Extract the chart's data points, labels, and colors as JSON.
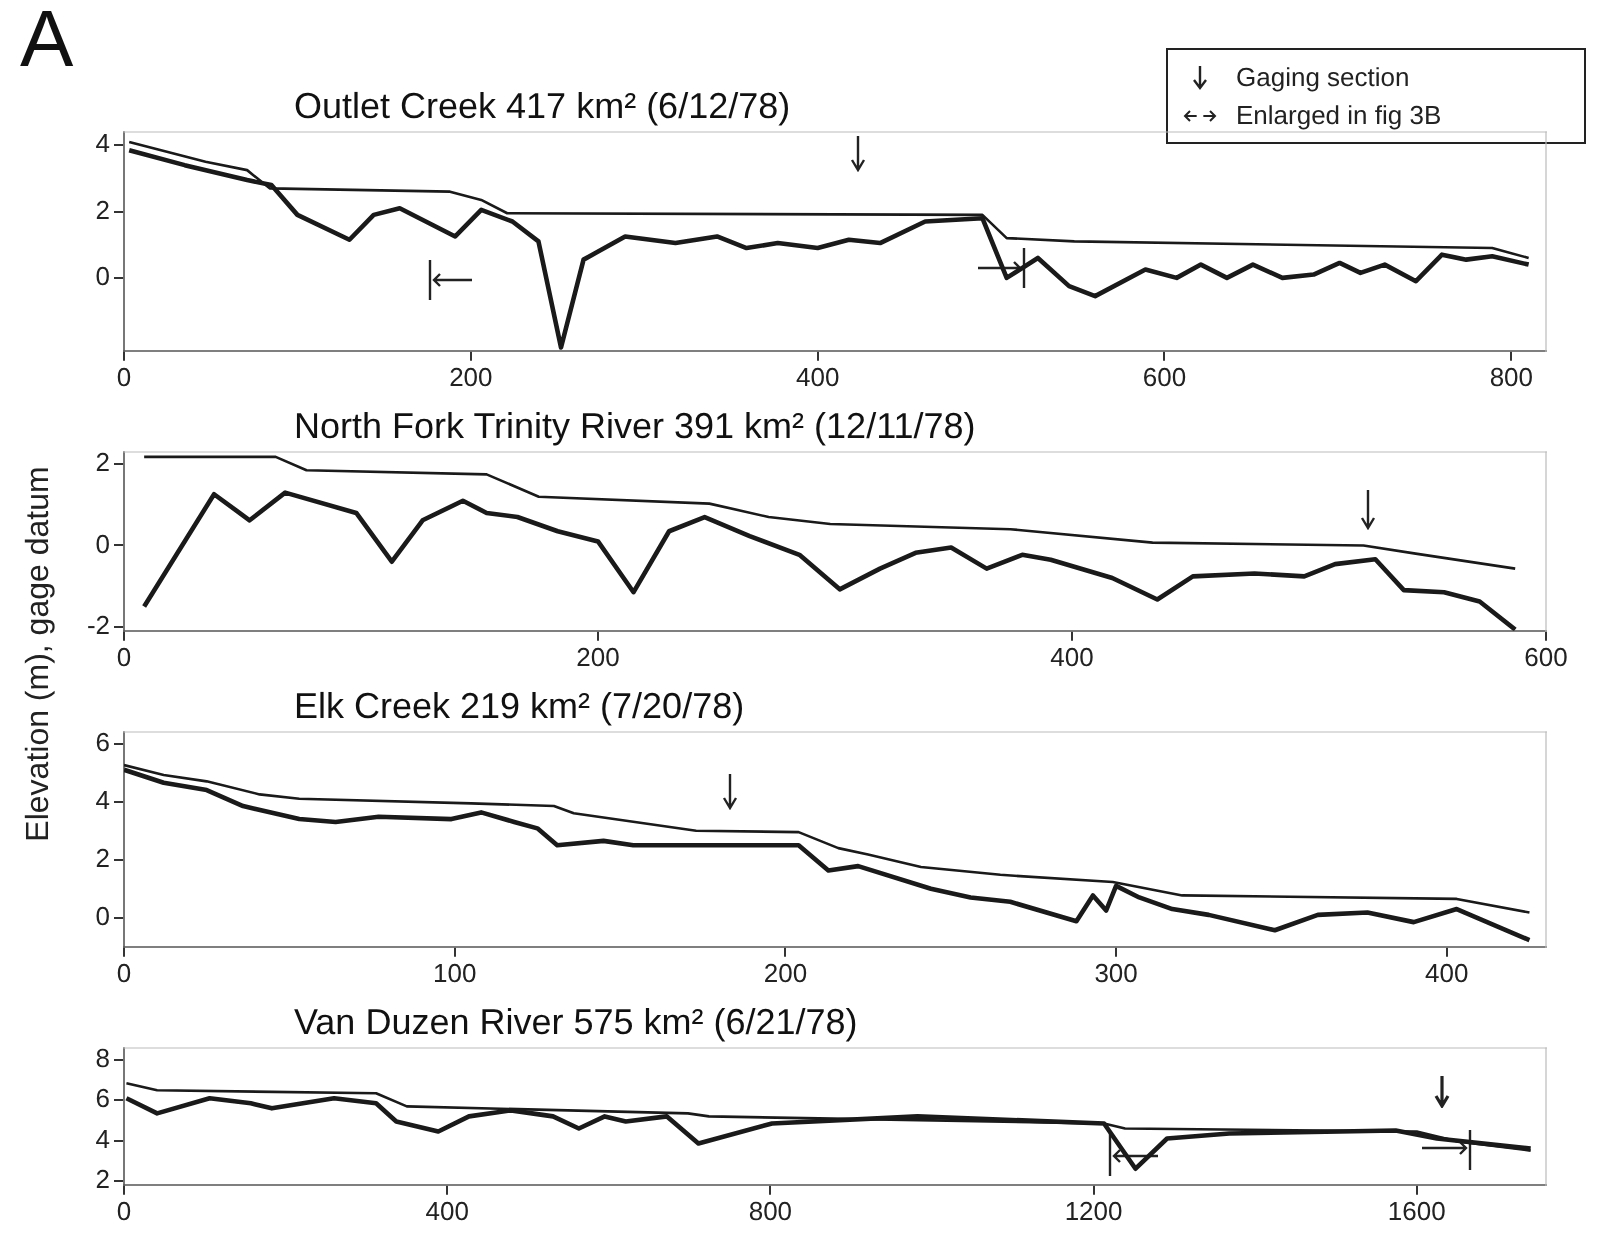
{
  "chart_data": [
    {
      "type": "line",
      "title": "Outlet Creek 417 km² (6/12/78)",
      "annotations": [
        "A",
        "Gaging section",
        "Enlarged in fig 3B"
      ],
      "xlim": [
        0,
        820
      ],
      "xticks": [
        0,
        200,
        400,
        600,
        800
      ],
      "ylim": [
        -2.2,
        4.4
      ],
      "yticks": [
        0,
        2,
        4
      ],
      "grid": false,
      "legend": false,
      "marker": "none",
      "line_style": "solid",
      "series": [
        {
          "color": "#1a1a1a",
          "x": [
            3,
            47,
            71,
            84,
            188,
            206,
            221,
            495,
            509,
            548,
            789,
            810
          ],
          "values": [
            4.1,
            3.5,
            3.25,
            2.7,
            2.6,
            2.35,
            1.95,
            1.9,
            1.2,
            1.1,
            0.9,
            0.6
          ]
        },
        {
          "color": "#1a1a1a",
          "x": [
            3,
            35,
            71,
            85,
            100,
            130,
            144,
            159,
            191,
            206,
            224,
            239,
            252,
            265,
            289,
            318,
            342,
            359,
            377,
            400,
            418,
            436,
            462,
            495,
            509,
            527,
            545,
            560,
            589,
            607,
            621,
            636,
            651,
            668,
            686,
            701,
            713,
            727,
            745,
            760,
            774,
            789,
            810
          ],
          "values": [
            3.85,
            3.4,
            2.95,
            2.8,
            1.9,
            1.15,
            1.9,
            2.1,
            1.25,
            2.05,
            1.7,
            1.1,
            -2.1,
            0.55,
            1.25,
            1.05,
            1.25,
            0.9,
            1.05,
            0.9,
            1.15,
            1.05,
            1.7,
            1.8,
            0,
            0.6,
            -0.25,
            -0.55,
            0.25,
            0,
            0.4,
            0,
            0.4,
            0,
            0.1,
            0.45,
            0.15,
            0.4,
            -0.1,
            0.7,
            0.55,
            0.65,
            0.4
          ]
        }
      ]
    },
    {
      "type": "line",
      "title": "North Fork Trinity River 391 km² (12/11/78)",
      "ylabel": "Elevation (m), gage datum",
      "xlim": [
        0,
        600
      ],
      "xticks": [
        0,
        200,
        400,
        600
      ],
      "ylim": [
        -2.1,
        2.3
      ],
      "yticks": [
        -2,
        0,
        2
      ],
      "grid": false,
      "legend": false,
      "marker": "none",
      "line_style": "solid",
      "series": [
        {
          "color": "#1a1a1a",
          "x": [
            8.5,
            64,
            77,
            153,
            175,
            247,
            272,
            298,
            374,
            434,
            523,
            545,
            587
          ],
          "values": [
            2.18,
            2.18,
            1.85,
            1.75,
            1.2,
            1.03,
            0.7,
            0.53,
            0.4,
            0.07,
            0,
            -0.2,
            -0.57
          ]
        },
        {
          "color": "#1a1a1a",
          "x": [
            8.5,
            38,
            53,
            68,
            98,
            113,
            126,
            143,
            153,
            166,
            183,
            200,
            215,
            230,
            245,
            264,
            285,
            302,
            319,
            334,
            349,
            364,
            379,
            391,
            417,
            436,
            451,
            477,
            498,
            511,
            528,
            540,
            557,
            572,
            587
          ],
          "values": [
            -1.5,
            1.26,
            0.62,
            1.3,
            0.8,
            -0.4,
            0.62,
            1.1,
            0.8,
            0.7,
            0.35,
            0.1,
            -1.15,
            0.35,
            0.7,
            0.23,
            -0.23,
            -1.08,
            -0.57,
            -0.18,
            -0.05,
            -0.57,
            -0.23,
            -0.35,
            -0.8,
            -1.33,
            -0.76,
            -0.69,
            -0.76,
            -0.46,
            -0.34,
            -1.1,
            -1.15,
            -1.38,
            -2.07
          ]
        }
      ]
    },
    {
      "type": "line",
      "title": "Elk Creek 219 km² (7/20/78)",
      "xlim": [
        0,
        430
      ],
      "xticks": [
        0,
        100,
        200,
        300,
        400
      ],
      "ylim": [
        -1,
        6.4
      ],
      "yticks": [
        0,
        2,
        4,
        6
      ],
      "grid": false,
      "legend": false,
      "marker": "none",
      "line_style": "solid",
      "series": [
        {
          "color": "#1a1a1a",
          "x": [
            0,
            12,
            25,
            41,
            53,
            105,
            130,
            136,
            173,
            204,
            216,
            225,
            241,
            265,
            299,
            320,
            403,
            425
          ],
          "values": [
            5.26,
            4.92,
            4.7,
            4.25,
            4.1,
            3.94,
            3.85,
            3.6,
            3.0,
            2.95,
            2.4,
            2.18,
            1.75,
            1.48,
            1.23,
            0.77,
            0.65,
            0.18
          ]
        },
        {
          "color": "#1a1a1a",
          "x": [
            0,
            12,
            25,
            36,
            53,
            64,
            77,
            99,
            108,
            118,
            125,
            131,
            145,
            154,
            204,
            213,
            222,
            244,
            256,
            268,
            288,
            293,
            297,
            300,
            307,
            317,
            328,
            348,
            361,
            376,
            390,
            403,
            425
          ],
          "values": [
            5.1,
            4.65,
            4.4,
            3.85,
            3.4,
            3.3,
            3.48,
            3.4,
            3.63,
            3.3,
            3.08,
            2.5,
            2.65,
            2.5,
            2.5,
            1.63,
            1.78,
            1.0,
            0.7,
            0.55,
            -0.12,
            0.77,
            0.25,
            1.1,
            0.7,
            0.3,
            0.1,
            -0.43,
            0.1,
            0.18,
            -0.15,
            0.3,
            -0.77
          ]
        }
      ]
    },
    {
      "type": "line",
      "title": "Van Duzen River 575 km² (6/21/78)",
      "xlim": [
        0,
        1760
      ],
      "xticks": [
        0,
        400,
        800,
        1200,
        1600
      ],
      "ylim": [
        1.8,
        8.6
      ],
      "yticks": [
        2,
        4,
        6,
        8
      ],
      "grid": false,
      "legend": false,
      "marker": "none",
      "line_style": "solid",
      "series": [
        {
          "color": "#1a1a1a",
          "x": [
            3,
            41,
            312,
            350,
            698,
            724,
            1213,
            1239,
            1600,
            1651,
            1741
          ],
          "values": [
            6.85,
            6.5,
            6.35,
            5.7,
            5.35,
            5.2,
            4.85,
            4.6,
            4.45,
            3.95,
            3.5
          ]
        },
        {
          "color": "#1a1a1a",
          "x": [
            3,
            41,
            106,
            157,
            183,
            260,
            312,
            337,
            389,
            427,
            479,
            531,
            563,
            595,
            621,
            672,
            711,
            802,
            982,
            1213,
            1252,
            1291,
            1368,
            1574,
            1625,
            1741
          ],
          "values": [
            6.1,
            5.35,
            6.1,
            5.85,
            5.6,
            6.1,
            5.85,
            4.95,
            4.45,
            5.2,
            5.5,
            5.2,
            4.6,
            5.2,
            4.95,
            5.2,
            3.85,
            4.85,
            5.2,
            4.85,
            2.6,
            4.1,
            4.35,
            4.5,
            4.1,
            3.6
          ]
        }
      ]
    }
  ]
}
